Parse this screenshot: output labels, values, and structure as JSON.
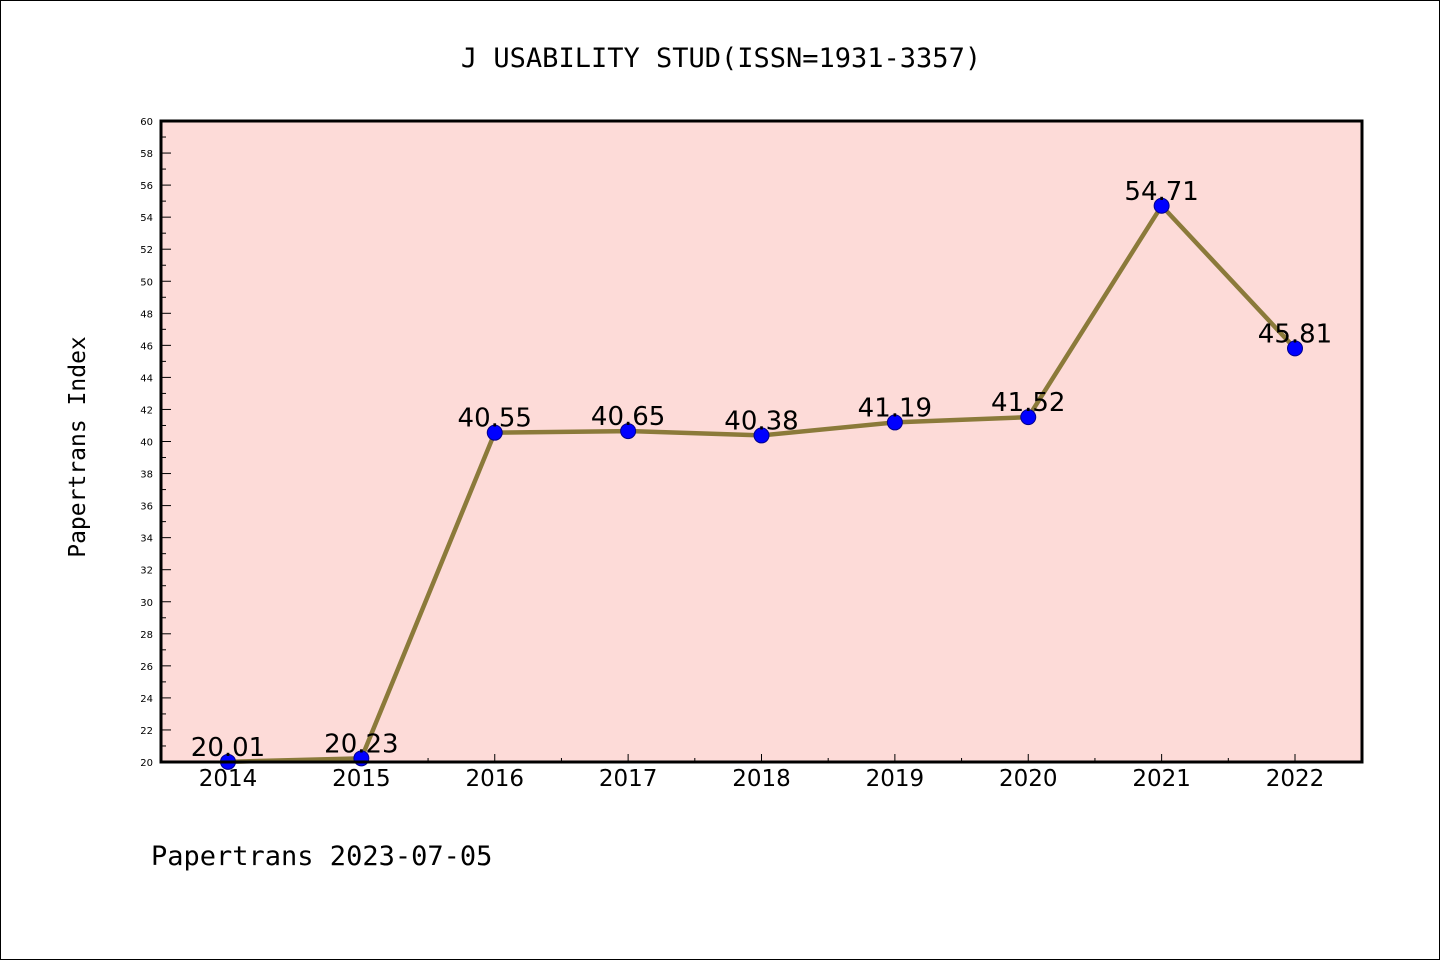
{
  "page": {
    "title": "J USABILITY STUD(ISSN=1931-3357)",
    "footer": "Papertrans 2023-07-05"
  },
  "chart_data": {
    "type": "line",
    "title": "J USABILITY STUD(ISSN=1931-3357)",
    "xlabel": "",
    "ylabel": "Papertrans Index",
    "categories": [
      "2014",
      "2015",
      "2016",
      "2017",
      "2018",
      "2019",
      "2020",
      "2021",
      "2022"
    ],
    "series": [
      {
        "values": [
          20.01,
          20.23,
          40.55,
          40.65,
          40.38,
          41.19,
          41.52,
          54.71,
          45.81
        ]
      }
    ],
    "data_labels": [
      "20.01",
      "20.23",
      "40.55",
      "40.65",
      "40.38",
      "41.19",
      "41.52",
      "54.71",
      "45.81"
    ],
    "ylim": [
      20,
      60
    ],
    "yticks": [
      20,
      22,
      24,
      26,
      28,
      30,
      32,
      34,
      36,
      38,
      40,
      42,
      44,
      46,
      48,
      50,
      52,
      54,
      56,
      58,
      60
    ],
    "grid": false,
    "legend": "none",
    "colors": {
      "plot_background": "#fddbd8",
      "line": "#8b7a3a",
      "marker": "#0000ff",
      "marker_edge": "#00008b",
      "axes": "#000000"
    }
  }
}
